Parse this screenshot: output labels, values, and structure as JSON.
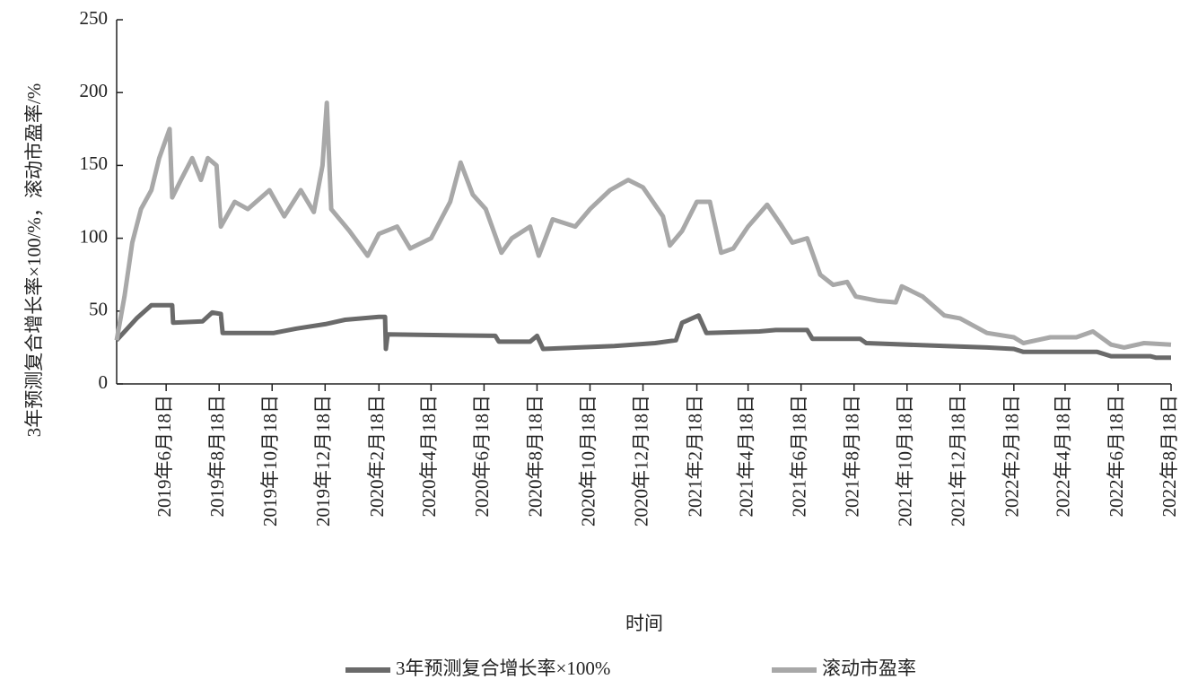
{
  "chart_data": {
    "type": "line",
    "x_label": "时间",
    "y_label": "3年预测复合增长率×100/%，滚动市盈率/%",
    "xlim": [
      "2019-04-22",
      "2022-08-18"
    ],
    "xticks": [
      {
        "value": "2019-06-18",
        "label": "2019年6月18日"
      },
      {
        "value": "2019-08-18",
        "label": "2019年8月18日"
      },
      {
        "value": "2019-10-18",
        "label": "2019年10月18日"
      },
      {
        "value": "2019-12-18",
        "label": "2019年12月18日"
      },
      {
        "value": "2020-02-18",
        "label": "2020年2月18日"
      },
      {
        "value": "2020-04-18",
        "label": "2020年4月18日"
      },
      {
        "value": "2020-06-18",
        "label": "2020年6月18日"
      },
      {
        "value": "2020-08-18",
        "label": "2020年8月18日"
      },
      {
        "value": "2020-10-18",
        "label": "2020年10月18日"
      },
      {
        "value": "2020-12-18",
        "label": "2020年12月18日"
      },
      {
        "value": "2021-02-18",
        "label": "2021年2月18日"
      },
      {
        "value": "2021-04-18",
        "label": "2021年4月18日"
      },
      {
        "value": "2021-06-18",
        "label": "2021年6月18日"
      },
      {
        "value": "2021-08-18",
        "label": "2021年8月18日"
      },
      {
        "value": "2021-10-18",
        "label": "2021年10月18日"
      },
      {
        "value": "2021-12-18",
        "label": "2021年12月18日"
      },
      {
        "value": "2022-02-18",
        "label": "2022年2月18日"
      },
      {
        "value": "2022-04-18",
        "label": "2022年4月18日"
      },
      {
        "value": "2022-06-18",
        "label": "2022年6月18日"
      },
      {
        "value": "2022-08-18",
        "label": "2022年8月18日"
      }
    ],
    "ylim": [
      0,
      250
    ],
    "yticks": [
      0,
      50,
      100,
      150,
      200,
      250
    ],
    "series": [
      {
        "name": "3年预测复合增长率×100%",
        "color": "#6a6a6a",
        "x": [
          "2019-04-22",
          "2019-05-15",
          "2019-06-01",
          "2019-06-25",
          "2019-06-26",
          "2019-07-30",
          "2019-08-10",
          "2019-08-20",
          "2019-08-22",
          "2019-10-20",
          "2019-11-15",
          "2019-12-18",
          "2020-01-10",
          "2020-02-18",
          "2020-02-25",
          "2020-02-26",
          "2020-02-28",
          "2020-07-01",
          "2020-07-05",
          "2020-08-10",
          "2020-08-18",
          "2020-08-25",
          "2020-11-15",
          "2021-01-01",
          "2021-01-25",
          "2021-02-01",
          "2021-02-20",
          "2021-03-01",
          "2021-05-01",
          "2021-05-20",
          "2021-06-25",
          "2021-07-01",
          "2021-08-25",
          "2021-09-01",
          "2021-12-01",
          "2022-01-18",
          "2022-02-18",
          "2022-03-01",
          "2022-05-25",
          "2022-06-10",
          "2022-07-25",
          "2022-08-01",
          "2022-08-18"
        ],
        "values": [
          30,
          45,
          54,
          54,
          42,
          43,
          49,
          48,
          35,
          35,
          38,
          41,
          44,
          46,
          46,
          24,
          34,
          33,
          29,
          29,
          33,
          24,
          26,
          28,
          30,
          42,
          47,
          35,
          36,
          37,
          37,
          31,
          31,
          28,
          26,
          25,
          24,
          22,
          22,
          19,
          19,
          18,
          18
        ]
      },
      {
        "name": "滚动市盈率",
        "color": "#a8a8a8",
        "x": [
          "2019-04-22",
          "2019-05-01",
          "2019-05-10",
          "2019-05-20",
          "2019-06-01",
          "2019-06-10",
          "2019-06-22",
          "2019-06-25",
          "2019-07-05",
          "2019-07-18",
          "2019-07-28",
          "2019-08-05",
          "2019-08-15",
          "2019-08-20",
          "2019-09-05",
          "2019-09-20",
          "2019-10-15",
          "2019-11-01",
          "2019-11-20",
          "2019-12-05",
          "2019-12-15",
          "2019-12-20",
          "2019-12-25",
          "2020-01-15",
          "2020-02-05",
          "2020-02-18",
          "2020-03-10",
          "2020-03-25",
          "2020-04-18",
          "2020-05-10",
          "2020-05-22",
          "2020-06-05",
          "2020-06-20",
          "2020-07-08",
          "2020-07-20",
          "2020-08-10",
          "2020-08-20",
          "2020-09-05",
          "2020-10-01",
          "2020-10-18",
          "2020-11-10",
          "2020-12-01",
          "2020-12-18",
          "2021-01-10",
          "2021-01-18",
          "2021-02-01",
          "2021-02-18",
          "2021-03-05",
          "2021-03-18",
          "2021-04-01",
          "2021-04-18",
          "2021-05-10",
          "2021-05-25",
          "2021-06-08",
          "2021-06-25",
          "2021-07-10",
          "2021-07-25",
          "2021-08-10",
          "2021-08-20",
          "2021-09-15",
          "2021-10-05",
          "2021-10-12",
          "2021-11-05",
          "2021-11-30",
          "2021-12-18",
          "2022-01-18",
          "2022-02-18",
          "2022-03-01",
          "2022-04-01",
          "2022-05-01",
          "2022-05-20",
          "2022-06-10",
          "2022-06-25",
          "2022-07-18",
          "2022-08-18"
        ],
        "values": [
          30,
          60,
          97,
          120,
          133,
          155,
          175,
          128,
          140,
          155,
          140,
          155,
          150,
          108,
          125,
          120,
          133,
          115,
          133,
          118,
          150,
          193,
          120,
          105,
          88,
          103,
          108,
          93,
          100,
          125,
          152,
          130,
          120,
          90,
          100,
          108,
          88,
          113,
          108,
          120,
          133,
          140,
          135,
          115,
          95,
          105,
          125,
          125,
          90,
          93,
          108,
          123,
          110,
          97,
          100,
          75,
          68,
          70,
          60,
          57,
          56,
          67,
          60,
          47,
          45,
          35,
          32,
          28,
          32,
          32,
          36,
          27,
          25,
          28,
          27
        ]
      }
    ]
  }
}
